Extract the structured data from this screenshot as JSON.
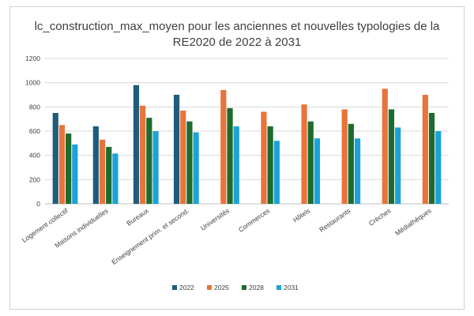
{
  "chart_data": {
    "type": "bar",
    "title_lines": [
      "lc_construction_max_moyen pour les anciennes et nouvelles typologies de la",
      "RE2020 de 2022 à 2031"
    ],
    "xlabel": "",
    "ylabel": "",
    "ylim": [
      0,
      1200
    ],
    "ytick_step": 200,
    "grid": true,
    "legend_position": "bottom",
    "categories": [
      "Logement collectif",
      "Maisons individuelles",
      "Bureaux",
      "Enseignement prim. et second.",
      "Universités",
      "Commerces",
      "Hôtels",
      "Restaurants",
      "Crèches",
      "Médiathèques"
    ],
    "series": [
      {
        "name": "2022",
        "color": "#1f5c7a",
        "values": [
          750,
          640,
          980,
          900,
          null,
          null,
          null,
          null,
          null,
          null
        ]
      },
      {
        "name": "2025",
        "color": "#e8743b",
        "values": [
          650,
          530,
          810,
          770,
          940,
          760,
          820,
          780,
          950,
          900
        ]
      },
      {
        "name": "2028",
        "color": "#1e6b2e",
        "values": [
          580,
          470,
          710,
          680,
          790,
          640,
          680,
          660,
          780,
          750
        ]
      },
      {
        "name": "2031",
        "color": "#1ba3d8",
        "values": [
          490,
          415,
          600,
          590,
          640,
          520,
          540,
          540,
          630,
          600
        ]
      }
    ]
  }
}
